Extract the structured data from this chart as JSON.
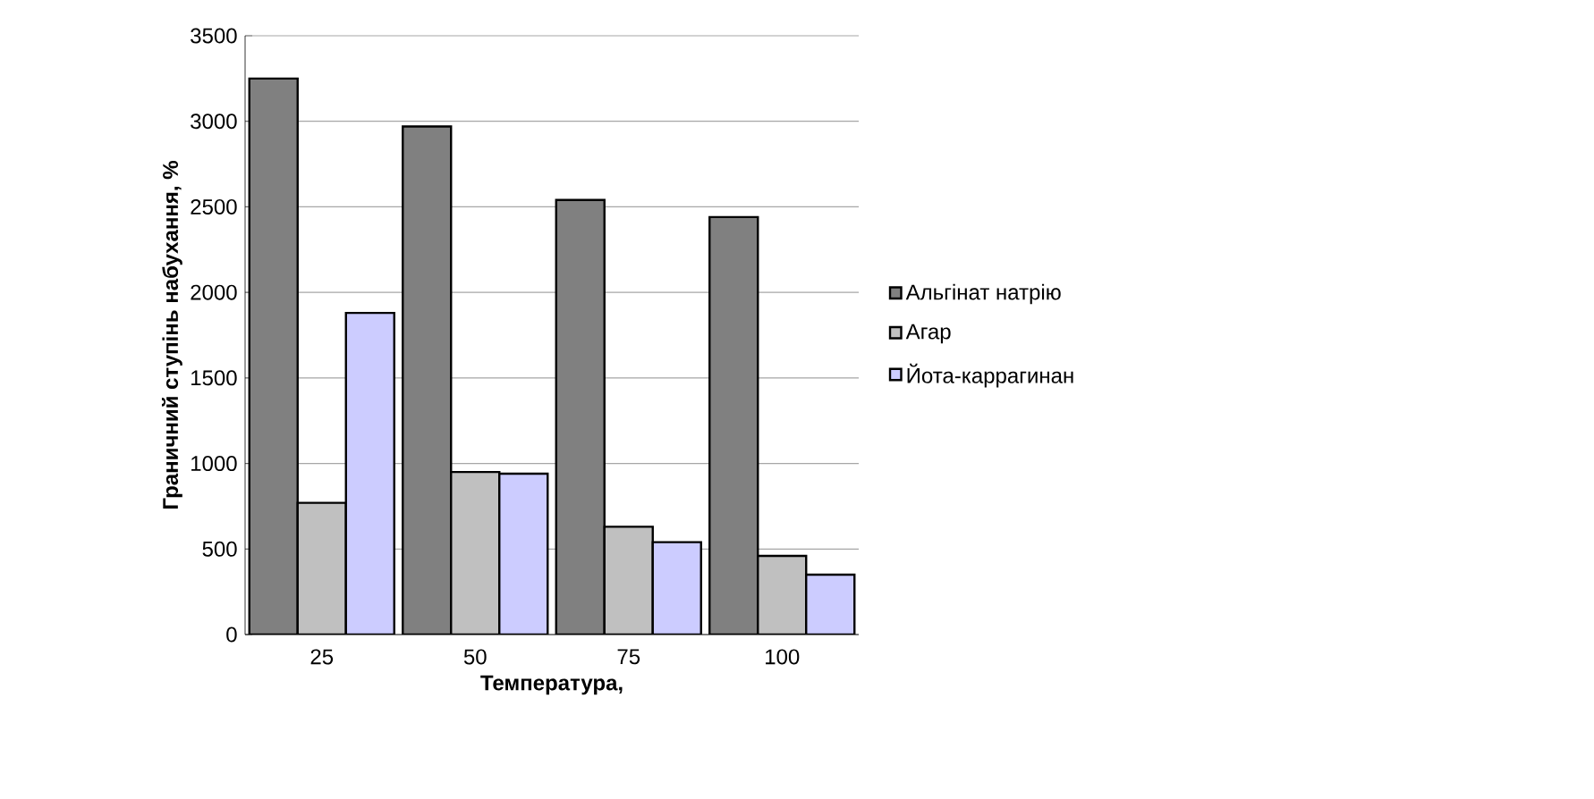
{
  "chart_data": {
    "type": "bar",
    "xlabel": "Температура,",
    "ylabel": "Граничний ступінь набухання, %",
    "categories": [
      "25",
      "50",
      "75",
      "100"
    ],
    "series": [
      {
        "name": "Альгінат натрію",
        "color": "#808080",
        "values": [
          3250,
          2970,
          2540,
          2440
        ]
      },
      {
        "name": "Агар",
        "color": "#c0c0c0",
        "values": [
          770,
          950,
          630,
          460
        ]
      },
      {
        "name": "Йота-каррагинан",
        "color": "#ccccff",
        "values": [
          1880,
          940,
          540,
          350
        ]
      }
    ],
    "ylim": [
      0,
      3500
    ],
    "yticks": [
      0,
      500,
      1000,
      1500,
      2000,
      2500,
      3000,
      3500
    ],
    "grid": "y",
    "legend": "right"
  }
}
